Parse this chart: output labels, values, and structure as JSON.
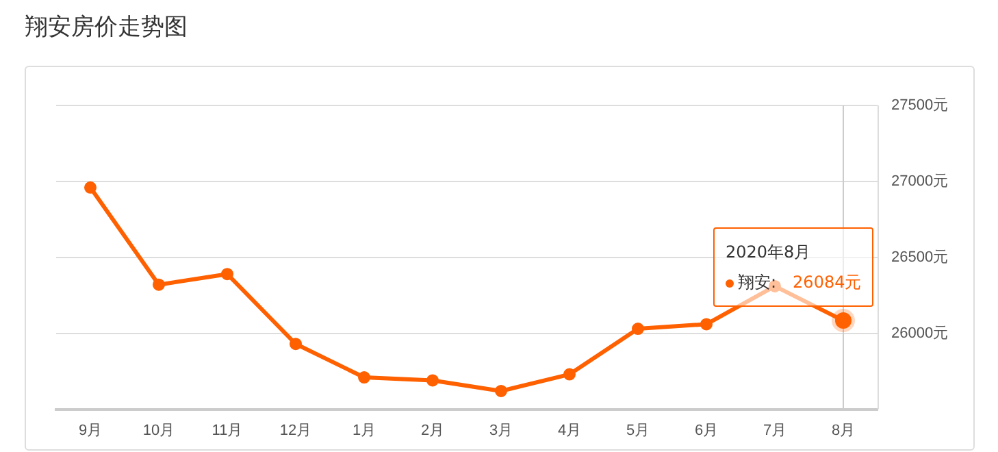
{
  "chart_data": {
    "type": "line",
    "title": "翔安房价走势图",
    "categories": [
      "9月",
      "10月",
      "11月",
      "12月",
      "1月",
      "2月",
      "3月",
      "4月",
      "5月",
      "6月",
      "7月",
      "8月"
    ],
    "series": [
      {
        "name": "翔安",
        "color": "#ff6000",
        "values": [
          26960,
          26320,
          26390,
          25930,
          25710,
          25690,
          25620,
          25730,
          26030,
          26060,
          26310,
          26084
        ],
        "value_labels": [
          null,
          null,
          null,
          null,
          null,
          null,
          null,
          null,
          null,
          null,
          null,
          "26084元"
        ]
      }
    ],
    "ylim": [
      25500,
      27500
    ],
    "yticks": [
      {
        "value": 25500,
        "label": null
      },
      {
        "value": 26000,
        "label": "26000元"
      },
      {
        "value": 26500,
        "label": "26500元"
      },
      {
        "value": 27000,
        "label": "27000元"
      },
      {
        "value": 27500,
        "label": "27500元"
      }
    ],
    "grid": "y",
    "legend": false,
    "marker": "circle",
    "line_style": "solid",
    "ref_lines": [
      {
        "axis": "x",
        "value": "8月",
        "color": "#cccccc"
      }
    ],
    "annotations": [
      "2020年8月",
      ":"
    ]
  }
}
